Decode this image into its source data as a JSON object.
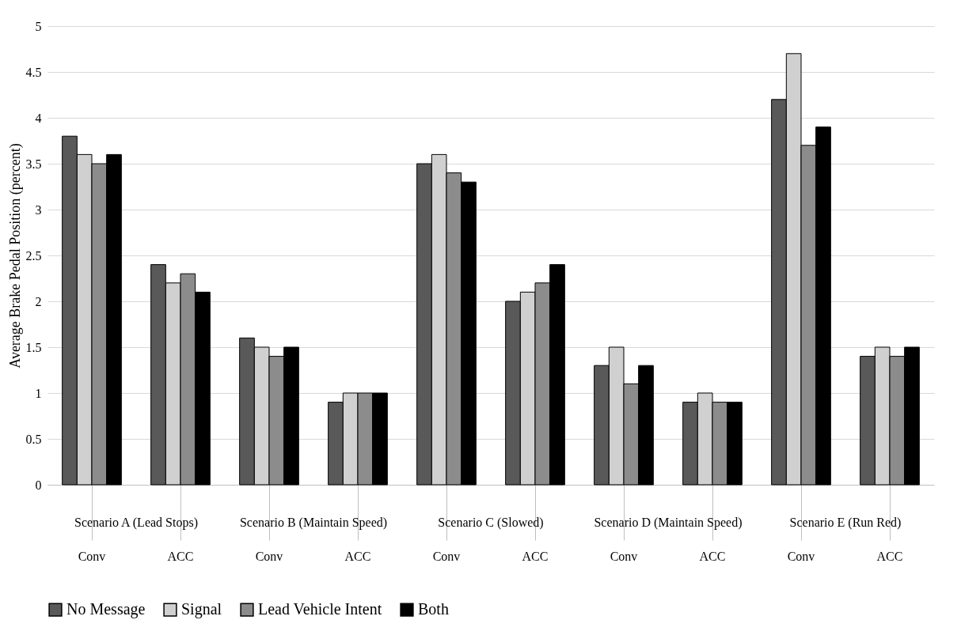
{
  "chart_data": {
    "type": "bar",
    "ylabel": "Average Brake Pedal Position (percent)",
    "categories": [
      "Conv",
      "ACC",
      "Conv",
      "ACC",
      "Conv",
      "ACC",
      "Conv",
      "ACC",
      "Conv",
      "ACC"
    ],
    "annotations": [
      "Scenario A (Lead Stops)",
      "Scenario B (Maintain Speed)",
      "Scenario C (Slowed)",
      "Scenario D (Maintain Speed)",
      "Scenario E (Run Red)"
    ],
    "series": [
      {
        "name": "No Message",
        "color": "#595959",
        "values": [
          3.8,
          2.4,
          1.6,
          0.9,
          3.5,
          2.0,
          1.3,
          0.9,
          4.2,
          1.4
        ]
      },
      {
        "name": "Signal",
        "color": "#d0d0d0",
        "values": [
          3.6,
          2.2,
          1.5,
          1.0,
          3.6,
          2.1,
          1.5,
          1.0,
          4.7,
          1.5
        ]
      },
      {
        "name": "Lead Vehicle Intent",
        "color": "#8c8c8c",
        "values": [
          3.5,
          2.3,
          1.4,
          1.0,
          3.4,
          2.2,
          1.1,
          0.9,
          3.7,
          1.4
        ]
      },
      {
        "name": "Both",
        "color": "#000000",
        "values": [
          3.6,
          2.1,
          1.5,
          1.0,
          3.3,
          2.4,
          1.3,
          0.9,
          3.9,
          1.5
        ]
      }
    ],
    "ylim": [
      0,
      5
    ],
    "yticks": [
      0,
      0.5,
      1,
      1.5,
      2,
      2.5,
      3,
      3.5,
      4,
      4.5,
      5
    ],
    "grid": "y",
    "legend": "bottom"
  }
}
